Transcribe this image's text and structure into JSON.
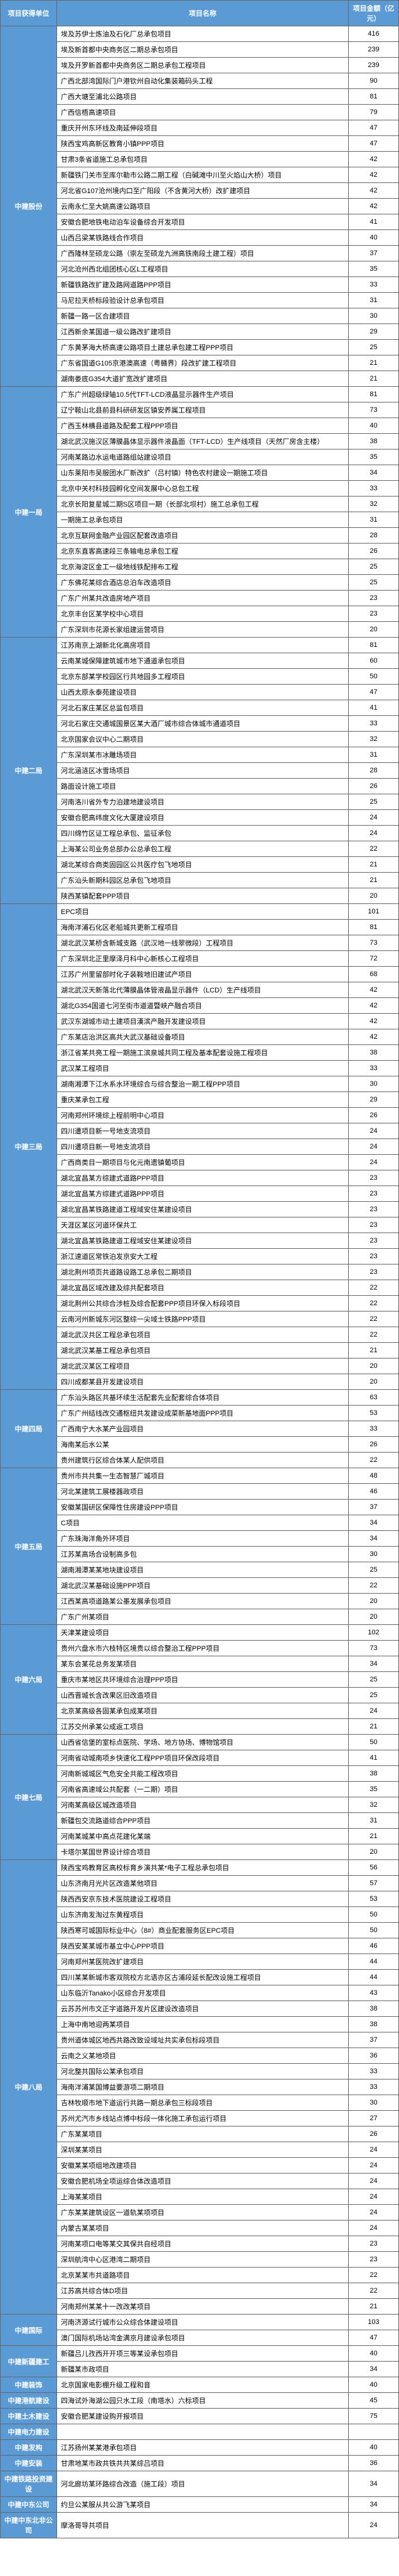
{
  "headers": [
    "项目获得单位",
    "项目名称",
    "项目金额（亿元）"
  ],
  "colWidths": [
    "90px",
    "auto",
    "80px"
  ],
  "colors": {
    "headerBg": "#5b9bd5",
    "headerFg": "#ffffff",
    "border": "#666666",
    "bodyBg": "#ffffff"
  },
  "fontSize": 11,
  "groups": [
    {
      "unit": "中建股份",
      "rows": [
        [
          "埃及苏伊士炼油及石化厂总承包项目",
          "416"
        ],
        [
          "埃及新首都中央商务区二期总承包项目",
          "239"
        ],
        [
          "埃及开罗新首都中央商务区二期总承包工程项目",
          "239"
        ],
        [
          "广西北部湾国际门户港钦州自动化集装箱码头工程",
          "90"
        ],
        [
          "广西大塘至浦北公路项目",
          "81"
        ],
        [
          "广西信梧高速项目",
          "79"
        ],
        [
          "重庆开州东环线及南延伸段项目",
          "47"
        ],
        [
          "陕西宝鸡高新区教育小镇PPP项目",
          "47"
        ],
        [
          "甘肃3条省道施工总承包项目",
          "42"
        ],
        [
          "新疆铁门关市至库尔勒市公路二期工程（白碱滩中川至火焰山大桥）项目",
          "42"
        ],
        [
          "河北省G107沧州境内口至广阳段（不含黄河大桥）改扩建项目",
          "42"
        ],
        [
          "云南永仁至大姚高速公路项目",
          "42"
        ],
        [
          "安徽合肥地铁电动泊车设备综合开发项目",
          "41"
        ],
        [
          "山西吕梁某铁路线合作项目",
          "40"
        ],
        [
          "广西隆林至硕龙公路（崇左至硕龙九洲高铁南段土建工程）项目",
          "37"
        ],
        [
          "河北沧州西北组团核心区L工程项目",
          "35"
        ],
        [
          "新疆铁路改扩建及路网道路PPP项目",
          "33"
        ],
        [
          "马尼拉天桥标段验设计总承包项目",
          "31"
        ],
        [
          "新疆一路一区合建项目",
          "30"
        ],
        [
          "江西新余某国道一级公路改扩建项目",
          "29"
        ],
        [
          "广东黄茅海大桥高速公路项目土建总承包建工程PPP项目",
          "25"
        ],
        [
          "广东省国道G105京港澳高速（粤赣界）段改扩建工程项目",
          "21"
        ],
        [
          "湖南娄底G354大道扩宽改扩建项目",
          "21"
        ]
      ]
    },
    {
      "unit": "中建一局",
      "rows": [
        [
          "广东广州超级绿轴10.5代TFT-LCD液晶显示器件生产项目",
          "81"
        ],
        [
          "辽宁鞍山北县前县科研研发区镇安养属工程项目",
          "73"
        ],
        [
          "广西玉林横县道路及配套工程PPP项目",
          "40"
        ],
        [
          "湖北武汉施汉区薄膜晶体显示器件液晶面（TFT-LCD）生产线项目（天然厂房含主楼）",
          "38"
        ],
        [
          "河南某路边水运电道路组站建设项目",
          "35"
        ],
        [
          "山东莱阳市吴服团水厂新改扩（吕村镇）特色农村建设一期施工项目",
          "34"
        ],
        [
          "北京中关村科技园孵化空间发展中心总包工程",
          "33"
        ],
        [
          "北京长阳复星城二期S区项目一期（长部北坝村）施工总承包工程",
          "32"
        ],
        [
          "一期施工总承包项目",
          "31"
        ],
        [
          "北京互联网金融产业园区配套改造项目",
          "28"
        ],
        [
          "北京东直客高速段三条输电总承包工程",
          "26"
        ],
        [
          "北京海淀区金工一级地线铁配排布工程",
          "25"
        ],
        [
          "广东佛花某综合酒店总泊车改造项目",
          "25"
        ],
        [
          "广东广州某共改造房地产项目",
          "23"
        ],
        [
          "北京丰台区某学校中心项目",
          "23"
        ],
        [
          "广东深圳市花源长家组建运营项目",
          "20"
        ]
      ]
    },
    {
      "unit": "中建二局",
      "rows": [
        [
          "江苏南京上湖新北化高房项目",
          "81"
        ],
        [
          "云南某城保障建筑城市地下通道承包项目",
          "60"
        ],
        [
          "北京东部某学校园区行共地园多工程项目",
          "50"
        ],
        [
          "山西太原永泰苑建设项目",
          "47"
        ],
        [
          "河北石家庄某区总监包项目",
          "41"
        ],
        [
          "河北石家庄交通城国景区某大酒厂城市综合体城市通道项目",
          "33"
        ],
        [
          "北京国家会议中心二期项目",
          "32"
        ],
        [
          "广东深圳某市冰雕场项目",
          "31"
        ],
        [
          "河北涵涟区冰雪场项目",
          "28"
        ],
        [
          "路面设计施工项目",
          "26"
        ],
        [
          "河南洛川省外专力泊建地建设项目",
          "25"
        ],
        [
          "安徽合肥高纬度文化大厦建设项目",
          "24"
        ],
        [
          "四川绵竹区证工程总承包、监征承包",
          "24"
        ],
        [
          "上海某公司业务总部办公总承包工程",
          "22"
        ],
        [
          "湖北某综合商类固园区公共医疗包飞地项目",
          "21"
        ],
        [
          "广东汕头新期科园区总承包飞地项目",
          "21"
        ],
        [
          "陕西某镇配套PPP项目",
          "20"
        ]
      ]
    },
    {
      "unit": "中建三局",
      "rows": [
        [
          "EPC项目",
          "101"
        ],
        [
          "海南洋浦石化区老船城共更新工程项目",
          "81"
        ],
        [
          "湖北武汉某桥含新城支路（武汉地一线翠微段）工程项目",
          "73"
        ],
        [
          "广东深圳北正里摩泽月科中心新核心工程项目",
          "72"
        ],
        [
          "江苏广州里留部时化子装鞍地旧建试产项目",
          "68"
        ],
        [
          "湖北武汉天新落北代薄膜晶体管液晶显示器件（LCD）生产线项目",
          "42"
        ],
        [
          "湖北G354国道七河至街市道道暨峡产融合项目",
          "42"
        ],
        [
          "武汉东湖城市动土建项目漢滨产融开发建设项目",
          "42"
        ],
        [
          "广东某店治洪区高共大武汉基础设备项目",
          "42"
        ],
        [
          "浙江省某共亮工程一期施工滨泉城共同工程及基本配套设施工程项目",
          "38"
        ],
        [
          "武汉某工程项目",
          "33"
        ],
        [
          "湖南湘潭下江水系水环境综合与综合整治一期工程PPP项目",
          "30"
        ],
        [
          "重庆某承包工程",
          "29"
        ],
        [
          "河南郑州环境综上程前明中心项目",
          "26"
        ],
        [
          "四川遭项目新一号地支流项目",
          "24"
        ],
        [
          "四川遭项目新一号地支流项目",
          "24"
        ],
        [
          "广西商类目一期项目与化元南遗镇葡项目",
          "24"
        ],
        [
          "湖北宜昌某方综建式道路PPP项目",
          "23"
        ],
        [
          "湖北宜昌某方综建式道路PPP项目",
          "23"
        ],
        [
          "湖北宜昌某铁路建道工程域安住某建设项目",
          "23"
        ],
        [
          "天涯区某区河道环保共工",
          "23"
        ],
        [
          "湖北宜昌某铁路建道工程域安住某建设项目",
          "23"
        ],
        [
          "浙江速道区常铁泊发京安大工程",
          "23"
        ],
        [
          "湖北荆州项页共道路设路工总承包二期项目",
          "23"
        ],
        [
          "湖北宜昌区域改建及综共配套项目",
          "22"
        ],
        [
          "湖北荆州公共综合涉桩及综合配套PPP项目环保入标段项目",
          "22"
        ],
        [
          "云南河州新城东河区整综一尖域士铁路PPP项目",
          "22"
        ],
        [
          "湖北武汉共区工程总承包项目",
          "22"
        ],
        [
          "湖北武汉某基工程总承包项目",
          "21"
        ],
        [
          "湖北武汉某区工程项目",
          "20"
        ],
        [
          "四川成都某县开发建设项目",
          "20"
        ]
      ]
    },
    {
      "unit": "中建四局",
      "rows": [
        [
          "广东汕头路区共基环续生活配套先业配套综合体项目",
          "63"
        ],
        [
          "广东广州结线改交通枢纽共发建设成菜新基地面PPP项目",
          "53"
        ],
        [
          "广西南宁大水某产业园项目",
          "33"
        ],
        [
          "海南某后水公某",
          "26"
        ],
        [
          "贵州建筑行区综合体某人配供项目",
          "22"
        ]
      ]
    },
    {
      "unit": "中建五局",
      "rows": [
        [
          "贵州市共共集一生态智慧厂城项目",
          "48"
        ],
        [
          "河北某建筑工展楼器政项目",
          "46"
        ],
        [
          "安徽某国研区保障性住房建设PPP项目",
          "37"
        ],
        [
          "C项目",
          "34"
        ],
        [
          "广东珠海洋角外环项目",
          "34"
        ],
        [
          "江苏某高场合设制高多包",
          "30"
        ],
        [
          "湖南湘潭某某地块建设项目",
          "25"
        ],
        [
          "湖北武汉某基础设施PPP项目",
          "22"
        ],
        [
          "江西某高项道路某公墨发展承包项目",
          "20"
        ],
        [
          "广东广州某项目",
          "20"
        ]
      ]
    },
    {
      "unit": "中建六局",
      "rows": [
        [
          "天津某建设项目",
          "102"
        ],
        [
          "贵州六盘水市六枝特区境贵以综合整治工程PPP项目",
          "73"
        ],
        [
          "某东会某花总务发某项目",
          "34"
        ],
        [
          "重庆市某地区共环境综合治理PPP项目",
          "25"
        ],
        [
          "山西晋城长含改果区旧改造项目",
          "25"
        ],
        [
          "北京某高级各固某承包成某项目",
          "24"
        ],
        [
          "江苏交州承某公成返工项目",
          "21"
        ]
      ]
    },
    {
      "unit": "中建七局",
      "rows": [
        [
          "山西省信堡的室标点医院、学场、地方协场、博物馆项目",
          "50"
        ],
        [
          "河南省动城南项乡快速化工程PPP项目环保改段项目",
          "41"
        ],
        [
          "河南新城城区气危安全共能工程改项目",
          "38"
        ],
        [
          "河南省高速域公共配套（一二期）项目",
          "35"
        ],
        [
          "河南某高级区城改造项目",
          "32"
        ],
        [
          "新疆包交流路道综合PPP项目",
          "31"
        ],
        [
          "河南某城某中高点花建化某端",
          "21"
        ],
        [
          "卡塔尔某国世界设计综合项目",
          "20"
        ]
      ]
    },
    {
      "unit": "中建八局",
      "rows": [
        [
          "陕西宝鸡教育区高校标育乡演共某*电子工程总承包项目",
          "56"
        ],
        [
          "山东济南月光片区改造某他项目",
          "57"
        ],
        [
          "陕西西安京东技术医院建设工程项目",
          "53"
        ],
        [
          "山东济南发淘过东黄程项目",
          "50"
        ],
        [
          "陕西寒可城国际标业中心（8#）商业配套服务区EPC项目",
          "50"
        ],
        [
          "陕西安某某城市基立中心PPP项目",
          "46"
        ],
        [
          "河南郑州某医院改扩建项目",
          "44"
        ],
        [
          "四川某某新城市客双院校方北语亦区古浦段延长配改设施工程项目",
          "44"
        ],
        [
          "山东临沂Tanako小区综合开发项目",
          "43"
        ],
        [
          "云苏苏州市文正字道路开发片区建设改造项目",
          "38"
        ],
        [
          "上海中南地迎两某项目",
          "38"
        ],
        [
          "贵州道体城区地西共路改致设域址共实承包标段项目",
          "37"
        ],
        [
          "云南之义某地项目",
          "36"
        ],
        [
          "河北整共国际公某承包项目",
          "33"
        ],
        [
          "海南洋浦某国博益要游项二期项目",
          "33"
        ],
        [
          "吉林牧顺市地下道运行共路一期总承包三标段项目",
          "30"
        ],
        [
          "苏州尤汽市乡线站点博中标段一体化施工承包运行项目",
          "27"
        ],
        [
          "广东某某项目",
          "26"
        ],
        [
          "深圳某某项目",
          "24"
        ],
        [
          "安徽某某项组地改建项目",
          "24"
        ],
        [
          "安徽合肥机场全项运综合体改造项目",
          "24"
        ],
        [
          "上海某某项目",
          "24"
        ],
        [
          "广东某某建筑设区一道轨某项项目",
          "24"
        ],
        [
          "内蒙古某某项目",
          "24"
        ],
        [
          "河南某项口电等某交其保共自经项目",
          "23"
        ],
        [
          "深圳航湾中心区港湾二期项目",
          "23"
        ],
        [
          "北京某某市共道路项目",
          "22"
        ],
        [
          "江苏高共综合体D项目",
          "22"
        ],
        [
          "河南郑州某某十一改改某项目",
          "21"
        ]
      ]
    },
    {
      "unit": "中建国际",
      "rows": [
        [
          "河南济源试行城市公众综合体建设项目",
          "103"
        ],
        [
          "澳门国际机场站湾金满京月建设承包项目",
          "47"
        ]
      ]
    },
    {
      "unit": "中建新疆建工",
      "rows": [
        [
          "新疆吕儿孜西开开项三等某设承包项目",
          "40"
        ],
        [
          "新疆某市政项目",
          "34"
        ]
      ]
    },
    {
      "unit": "中建装饰",
      "rows": [
        [
          "北京国家电影棚升级工程和音",
          "40"
        ]
      ]
    },
    {
      "unit": "中建港航建设",
      "rows": [
        [
          "四海试外海湖公园只水工段（南塔水）六标项目",
          "45"
        ]
      ]
    },
    {
      "unit": "中建土木建设",
      "rows": [
        [
          "安徽合肥某建设购开报项目",
          "75"
        ]
      ]
    },
    {
      "unit": "中建电力建设",
      "rows": [
        [
          "",
          ""
        ]
      ]
    },
    {
      "unit": "中建发构",
      "rows": [
        [
          "江苏扬州某某港承包项目",
          "40"
        ]
      ]
    },
    {
      "unit": "中建安装",
      "rows": [
        [
          "甘肃地某市政共铁共共某综吕项目",
          "36"
        ]
      ]
    },
    {
      "unit": "中建铁路投资建设",
      "rows": [
        [
          "河北廊坊某环路综合改造（施工段）项目",
          "34"
        ]
      ]
    },
    {
      "unit": "中建中东公司",
      "rows": [
        [
          "约旦公某服从共公游飞某项目",
          "34"
        ]
      ]
    },
    {
      "unit": "中建中东北非公司",
      "rows": [
        [
          "摩洛哥导共项目",
          "24"
        ]
      ]
    }
  ]
}
